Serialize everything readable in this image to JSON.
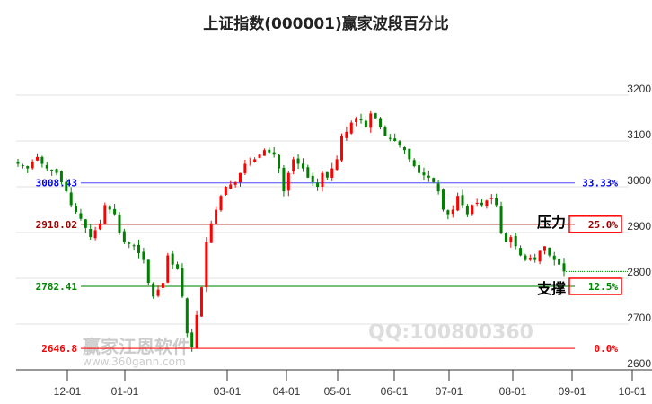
{
  "title": "上证指数(000001)赢家波段百分比",
  "watermarks": {
    "qq": "QQ:100800360",
    "brand": "赢家江恩软件",
    "url": "www.360gann.com"
  },
  "chart_data": {
    "type": "candlestick",
    "title": "上证指数(000001)赢家波段百分比",
    "ylim": [
      2600,
      3230
    ],
    "yticks": [
      2600,
      2700,
      2800,
      2900,
      3000,
      3100,
      3200
    ],
    "xticks": [
      "12-01",
      "01-01",
      "03-01",
      "04-01",
      "05-01",
      "06-01",
      "07-01",
      "08-01",
      "09-01",
      "10-01"
    ],
    "approx_closes": [
      3050,
      3045,
      3040,
      3055,
      3065,
      3050,
      3040,
      3035,
      3030,
      3010,
      2990,
      2960,
      2945,
      2930,
      2910,
      2890,
      2905,
      2920,
      2960,
      2950,
      2940,
      2900,
      2880,
      2875,
      2870,
      2855,
      2840,
      2790,
      2760,
      2775,
      2790,
      2850,
      2830,
      2820,
      2760,
      2680,
      2650,
      2720,
      2780,
      2880,
      2920,
      2950,
      2980,
      3000,
      3005,
      3010,
      3030,
      3050,
      3055,
      3060,
      3070,
      3080,
      3075,
      3070,
      3040,
      2990,
      3030,
      3060,
      3050,
      3040,
      3020,
      3010,
      3000,
      3030,
      3020,
      3040,
      3060,
      3110,
      3120,
      3140,
      3150,
      3145,
      3130,
      3160,
      3150,
      3130,
      3110,
      3105,
      3100,
      3090,
      3080,
      3060,
      3045,
      3030,
      3025,
      3020,
      3010,
      2990,
      2950,
      2940,
      2950,
      2980,
      2960,
      2940,
      2960,
      2965,
      2960,
      2970,
      2975,
      2960,
      2900,
      2880,
      2890,
      2870,
      2850,
      2840,
      2845,
      2840,
      2860,
      2870,
      2850,
      2840,
      2830,
      2815
    ],
    "levels": [
      {
        "price": "3008.43",
        "value": 3008.43,
        "pct": "33.33%",
        "color": "#0000ff"
      },
      {
        "price": "2918.02",
        "value": 2918.02,
        "pct": "25.0%",
        "color": "#990000",
        "tag": "压力",
        "boxed": true
      },
      {
        "price": "2782.41",
        "value": 2782.41,
        "pct": "12.5%",
        "color": "#008800",
        "tag": "支撑",
        "boxed": true
      },
      {
        "price": "2646.8",
        "value": 2646.8,
        "pct": "0.0%",
        "color": "#ff0000"
      }
    ],
    "last_price_line": 2815,
    "up_color": "#ff0000",
    "down_color": "#008000"
  }
}
